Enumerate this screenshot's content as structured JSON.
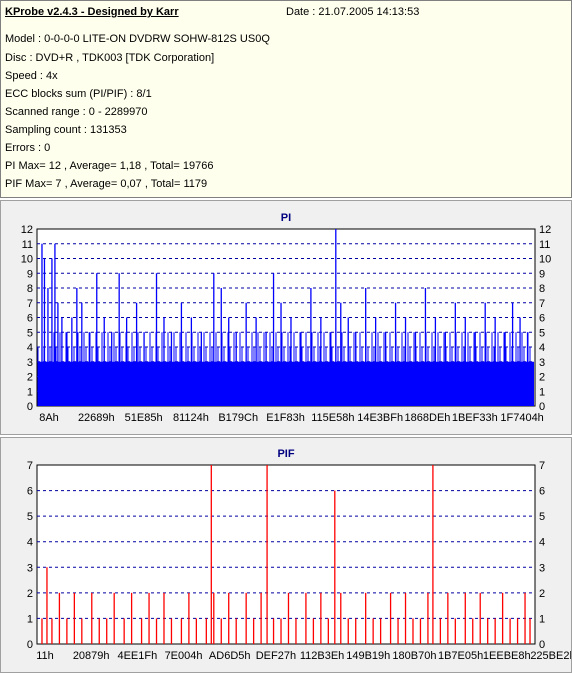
{
  "header": {
    "title": "KProbe v2.4.3 - Designed by Karr",
    "date": "Date : 21.07.2005 14:13:53",
    "lines": [
      "Model : 0-0-0-0 LITE-ON DVDRW SOHW-812S  US0Q",
      "Disc : DVD+R , TDK003 [TDK Corporation]",
      "Speed : 4x",
      "ECC blocks sum (PI/PIF) : 8/1",
      "Scanned range : 0 - 2289970",
      "Sampling count : 131353",
      "Errors : 0",
      "PI Max= 12 , Average= 1,18 , Total= 19766",
      "PIF Max= 7 , Average= 0,07 , Total= 1179"
    ]
  },
  "colors": {
    "pi": "#0000ff",
    "pif": "#ff0000",
    "grid": "#0000a0",
    "info_bg": "#ffffee",
    "panel_bg": "#f0f0f0"
  },
  "chart_data": [
    {
      "type": "bar",
      "title": "PI",
      "ylim": [
        0,
        12
      ],
      "yticks": [
        0,
        1,
        2,
        3,
        4,
        5,
        6,
        7,
        8,
        9,
        10,
        11,
        12
      ],
      "xtick_labels": [
        "8Ah",
        "22689h",
        "51E85h",
        "81124h",
        "B179Ch",
        "E1F83h",
        "115E58h",
        "14E3BFh",
        "1868DEh",
        "1BEF33h",
        "1F7404h"
      ],
      "grid": "dashed-horizontal",
      "baseline": 3,
      "values": [
        {
          "x": 0.01,
          "y": 11
        },
        {
          "x": 0.015,
          "y": 10
        },
        {
          "x": 0.022,
          "y": 8
        },
        {
          "x": 0.03,
          "y": 10
        },
        {
          "x": 0.036,
          "y": 11
        },
        {
          "x": 0.042,
          "y": 7
        },
        {
          "x": 0.05,
          "y": 6
        },
        {
          "x": 0.06,
          "y": 5
        },
        {
          "x": 0.07,
          "y": 6
        },
        {
          "x": 0.08,
          "y": 8
        },
        {
          "x": 0.09,
          "y": 7
        },
        {
          "x": 0.105,
          "y": 5
        },
        {
          "x": 0.12,
          "y": 9
        },
        {
          "x": 0.135,
          "y": 6
        },
        {
          "x": 0.15,
          "y": 5
        },
        {
          "x": 0.165,
          "y": 9
        },
        {
          "x": 0.18,
          "y": 6
        },
        {
          "x": 0.2,
          "y": 7
        },
        {
          "x": 0.215,
          "y": 5
        },
        {
          "x": 0.24,
          "y": 9
        },
        {
          "x": 0.255,
          "y": 6
        },
        {
          "x": 0.27,
          "y": 5
        },
        {
          "x": 0.29,
          "y": 7
        },
        {
          "x": 0.31,
          "y": 6
        },
        {
          "x": 0.33,
          "y": 5
        },
        {
          "x": 0.355,
          "y": 9
        },
        {
          "x": 0.37,
          "y": 8
        },
        {
          "x": 0.385,
          "y": 6
        },
        {
          "x": 0.4,
          "y": 5
        },
        {
          "x": 0.42,
          "y": 7
        },
        {
          "x": 0.44,
          "y": 6
        },
        {
          "x": 0.46,
          "y": 5
        },
        {
          "x": 0.475,
          "y": 9
        },
        {
          "x": 0.49,
          "y": 7
        },
        {
          "x": 0.51,
          "y": 6
        },
        {
          "x": 0.53,
          "y": 5
        },
        {
          "x": 0.55,
          "y": 8
        },
        {
          "x": 0.57,
          "y": 6
        },
        {
          "x": 0.59,
          "y": 5
        },
        {
          "x": 0.61,
          "y": 7
        },
        {
          "x": 0.625,
          "y": 6
        },
        {
          "x": 0.6,
          "y": 12
        },
        {
          "x": 0.64,
          "y": 5
        },
        {
          "x": 0.66,
          "y": 8
        },
        {
          "x": 0.68,
          "y": 6
        },
        {
          "x": 0.7,
          "y": 5
        },
        {
          "x": 0.72,
          "y": 7
        },
        {
          "x": 0.74,
          "y": 6
        },
        {
          "x": 0.76,
          "y": 5
        },
        {
          "x": 0.78,
          "y": 8
        },
        {
          "x": 0.8,
          "y": 6
        },
        {
          "x": 0.82,
          "y": 5
        },
        {
          "x": 0.84,
          "y": 7
        },
        {
          "x": 0.86,
          "y": 6
        },
        {
          "x": 0.88,
          "y": 5
        },
        {
          "x": 0.9,
          "y": 7
        },
        {
          "x": 0.92,
          "y": 6
        },
        {
          "x": 0.94,
          "y": 5
        },
        {
          "x": 0.955,
          "y": 7
        },
        {
          "x": 0.97,
          "y": 6
        },
        {
          "x": 0.985,
          "y": 5
        }
      ]
    },
    {
      "type": "bar",
      "title": "PIF",
      "ylim": [
        0,
        7
      ],
      "yticks": [
        0,
        1,
        2,
        3,
        4,
        5,
        6,
        7
      ],
      "xtick_labels": [
        "11h",
        "20879h",
        "4EE1Fh",
        "7E004h",
        "AD6D5h",
        "DEF27h",
        "112B3Eh",
        "149B19h",
        "180B70h",
        "1B7E05h",
        "1EEBE8h",
        "225BE2h"
      ],
      "grid": "dashed-horizontal",
      "values": [
        {
          "x": 0.01,
          "y": 1
        },
        {
          "x": 0.02,
          "y": 3
        },
        {
          "x": 0.03,
          "y": 1
        },
        {
          "x": 0.045,
          "y": 2
        },
        {
          "x": 0.06,
          "y": 1
        },
        {
          "x": 0.075,
          "y": 2
        },
        {
          "x": 0.09,
          "y": 1
        },
        {
          "x": 0.11,
          "y": 2
        },
        {
          "x": 0.125,
          "y": 1
        },
        {
          "x": 0.14,
          "y": 1
        },
        {
          "x": 0.155,
          "y": 2
        },
        {
          "x": 0.175,
          "y": 1
        },
        {
          "x": 0.19,
          "y": 2
        },
        {
          "x": 0.21,
          "y": 1
        },
        {
          "x": 0.225,
          "y": 2
        },
        {
          "x": 0.24,
          "y": 1
        },
        {
          "x": 0.255,
          "y": 2
        },
        {
          "x": 0.27,
          "y": 1
        },
        {
          "x": 0.29,
          "y": 1
        },
        {
          "x": 0.305,
          "y": 2
        },
        {
          "x": 0.32,
          "y": 1
        },
        {
          "x": 0.34,
          "y": 1
        },
        {
          "x": 0.355,
          "y": 2
        },
        {
          "x": 0.35,
          "y": 7
        },
        {
          "x": 0.37,
          "y": 1
        },
        {
          "x": 0.385,
          "y": 2
        },
        {
          "x": 0.4,
          "y": 1
        },
        {
          "x": 0.42,
          "y": 2
        },
        {
          "x": 0.435,
          "y": 1
        },
        {
          "x": 0.45,
          "y": 2
        },
        {
          "x": 0.462,
          "y": 7
        },
        {
          "x": 0.475,
          "y": 1
        },
        {
          "x": 0.49,
          "y": 1
        },
        {
          "x": 0.505,
          "y": 2
        },
        {
          "x": 0.52,
          "y": 1
        },
        {
          "x": 0.54,
          "y": 2
        },
        {
          "x": 0.555,
          "y": 1
        },
        {
          "x": 0.57,
          "y": 2
        },
        {
          "x": 0.585,
          "y": 1
        },
        {
          "x": 0.598,
          "y": 6
        },
        {
          "x": 0.61,
          "y": 2
        },
        {
          "x": 0.625,
          "y": 1
        },
        {
          "x": 0.64,
          "y": 1
        },
        {
          "x": 0.66,
          "y": 2
        },
        {
          "x": 0.675,
          "y": 1
        },
        {
          "x": 0.69,
          "y": 1
        },
        {
          "x": 0.71,
          "y": 2
        },
        {
          "x": 0.725,
          "y": 1
        },
        {
          "x": 0.74,
          "y": 2
        },
        {
          "x": 0.755,
          "y": 1
        },
        {
          "x": 0.77,
          "y": 1
        },
        {
          "x": 0.785,
          "y": 2
        },
        {
          "x": 0.795,
          "y": 7
        },
        {
          "x": 0.81,
          "y": 1
        },
        {
          "x": 0.825,
          "y": 2
        },
        {
          "x": 0.84,
          "y": 1
        },
        {
          "x": 0.86,
          "y": 2
        },
        {
          "x": 0.875,
          "y": 1
        },
        {
          "x": 0.89,
          "y": 2
        },
        {
          "x": 0.905,
          "y": 1
        },
        {
          "x": 0.92,
          "y": 1
        },
        {
          "x": 0.935,
          "y": 2
        },
        {
          "x": 0.95,
          "y": 1
        },
        {
          "x": 0.965,
          "y": 1
        },
        {
          "x": 0.98,
          "y": 2
        },
        {
          "x": 0.99,
          "y": 1
        }
      ]
    }
  ]
}
